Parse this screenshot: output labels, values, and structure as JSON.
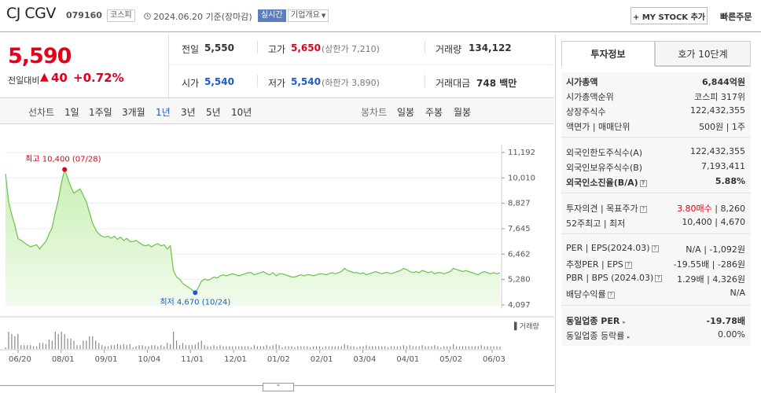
{
  "header": {
    "name": "CJ CGV",
    "code": "079160",
    "market_tag": "코스피",
    "date_text": "2024.06.20 기준(장마감)",
    "realtime_tag": "실시간",
    "company_info": "기업개요",
    "mystock_btn": "+ MY STOCK 추가",
    "quick_order": "빠른주문"
  },
  "price": {
    "current": "5,590",
    "change_label": "전일대비",
    "change_arrow": "▲",
    "change_value": "40",
    "change_pct": "+0.72%"
  },
  "quote": {
    "prev_label": "전일",
    "prev_value": "5,550",
    "high_label": "고가",
    "high_value": "5,650",
    "upper_limit": "(상한가 7,210)",
    "volume_label": "거래량",
    "volume_value": "134,122",
    "open_label": "시가",
    "open_value": "5,540",
    "low_label": "저가",
    "low_value": "5,540",
    "lower_limit": "(하한가 3,890)",
    "amount_label": "거래대금",
    "amount_value": "748 백만"
  },
  "periods": {
    "line_label": "선차트",
    "line": [
      "1일",
      "1주일",
      "3개월",
      "1년",
      "3년",
      "5년",
      "10년"
    ],
    "selected": "1년",
    "candle_label": "봉차트",
    "candle": [
      "일봉",
      "주봉",
      "월봉"
    ]
  },
  "tabs": {
    "investment": "투자정보",
    "orderbook": "호가 10단계"
  },
  "invest": {
    "market_cap": {
      "label": "시가총액",
      "value": "6,844억원"
    },
    "market_cap_rank": {
      "label": "시가총액순위",
      "value": "코스피 317위"
    },
    "shares": {
      "label": "상장주식수",
      "value": "122,432,355"
    },
    "par": {
      "label": "액면가 | 매매단위",
      "value": "500원 | 1주"
    },
    "foreign_limit": {
      "label": "외국인한도주식수(A)",
      "value": "122,432,355"
    },
    "foreign_hold": {
      "label": "외국인보유주식수(B)",
      "value": "7,193,411"
    },
    "foreign_ratio": {
      "label": "외국인소진율(B/A)",
      "value": "5.88%"
    },
    "opinion": {
      "label": "투자의견 | 목표주가",
      "value_a": "3.80매수",
      "value_b": "| 8,260"
    },
    "week52": {
      "label": "52주최고 | 최저",
      "value": "10,400 | 4,670"
    },
    "per": {
      "label": "PER | EPS(2024.03)",
      "value": "N/A | -1,092원"
    },
    "est_per": {
      "label": "추정PER | EPS",
      "value": "-19.55배 | -286원"
    },
    "pbr": {
      "label": "PBR | BPS (2024.03)",
      "value": "1.29배 | 4,326원"
    },
    "dividend": {
      "label": "배당수익률",
      "value": "N/A"
    },
    "sector_per": {
      "label": "동일업종 PER",
      "value": "-19.78배"
    },
    "sector_rate": {
      "label": "동일업종 등락률",
      "value": "0.00%"
    }
  },
  "colors": {
    "up": "#e4001b",
    "down": "#1b5cc8",
    "line": "#6cc24a",
    "fill": "#d8f3c6"
  },
  "chart_data": {
    "type": "area",
    "y_ticks": [
      "11,192",
      "10,010",
      "8,827",
      "7,645",
      "6,462",
      "5,280",
      "4,097"
    ],
    "ylim": [
      4097,
      11192
    ],
    "x_ticks": [
      "06/20",
      "08/01",
      "09/01",
      "10/04",
      "11/01",
      "12/01",
      "01/02",
      "02/01",
      "03/04",
      "04/01",
      "05/02",
      "06/03"
    ],
    "max_label": "최고 10,400 (07/28)",
    "min_label": "최저 4,670 (10/24)",
    "volume_label": "거래량",
    "values": [
      10200,
      8900,
      8300,
      7800,
      7200,
      7100,
      7000,
      6900,
      6800,
      6850,
      6900,
      6700,
      6900,
      7050,
      7400,
      7700,
      8400,
      9000,
      9800,
      10400,
      10000,
      9600,
      9300,
      9400,
      9500,
      9200,
      8900,
      8400,
      7900,
      7600,
      7400,
      7300,
      7250,
      7300,
      7200,
      7300,
      7150,
      7250,
      7100,
      7200,
      7050,
      7050,
      7100,
      7000,
      6900,
      6850,
      6900,
      6800,
      6900,
      6950,
      6850,
      6900,
      6700,
      6850,
      5700,
      5400,
      5300,
      5100,
      5000,
      4900,
      4800,
      4670,
      4900,
      5200,
      5300,
      5250,
      5300,
      5400,
      5350,
      5450,
      5500,
      5450,
      5500,
      5550,
      5500,
      5450,
      5500,
      5550,
      5600,
      5600,
      5500,
      5550,
      5600,
      5650,
      5550,
      5500,
      5600,
      5450,
      5550,
      5550,
      5500,
      5450,
      5400,
      5400,
      5450,
      5500,
      5450,
      5500,
      5500,
      5450,
      5500,
      5550,
      5550,
      5500,
      5550,
      5600,
      5550,
      5600,
      5650,
      5800,
      5700,
      5650,
      5600,
      5600,
      5550,
      5600,
      5500,
      5550,
      5600,
      5650,
      5600,
      5550,
      5600,
      5600,
      5550,
      5600,
      5650,
      5700,
      5800,
      5750,
      5650,
      5600,
      5650,
      5600,
      5700,
      5650,
      5600,
      5650,
      5550,
      5600,
      5600,
      5550,
      5600,
      5650,
      5800,
      5750,
      5700,
      5650,
      5700,
      5650,
      5600,
      5550,
      5500,
      5600,
      5650,
      5600,
      5550,
      5600,
      5550,
      5590
    ]
  }
}
